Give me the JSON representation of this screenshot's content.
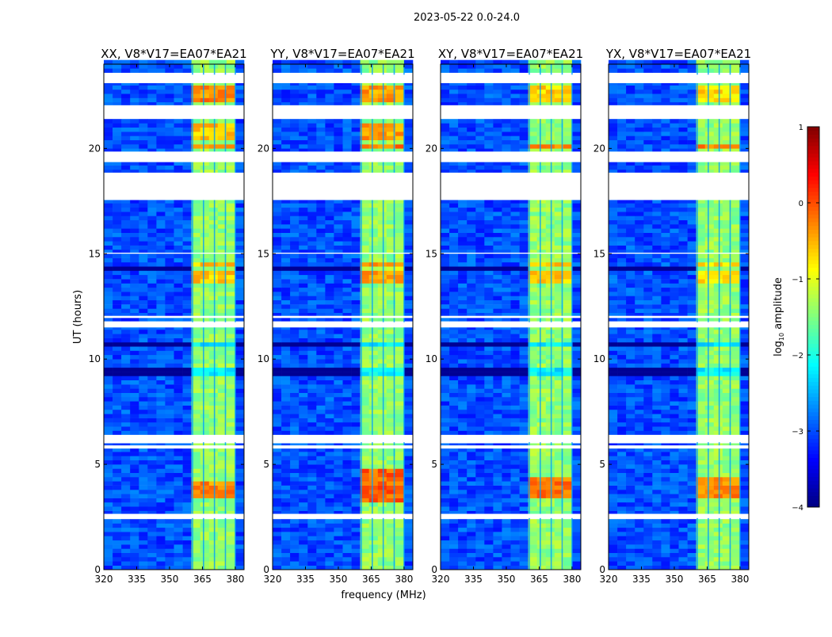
{
  "chart_data": {
    "type": "heatmap",
    "suptitle": "2023-05-22 0.0-24.0",
    "xlabel": "frequency (MHz)",
    "ylabel": "UT (hours)",
    "xlim": [
      320,
      384
    ],
    "ylim": [
      0,
      24
    ],
    "xticks": [
      320,
      335,
      350,
      365,
      380
    ],
    "yticks": [
      0,
      5,
      10,
      15,
      20
    ],
    "colorbar": {
      "label": "log10 amplitude",
      "label_main": "log",
      "label_sub": "10",
      "label_rest": " amplitude",
      "range": [
        -4,
        1
      ],
      "ticks": [
        1,
        0,
        -1,
        -2,
        -3,
        -4
      ],
      "tick_labels": [
        "1",
        "0",
        "−1",
        "−2",
        "−3",
        "−4"
      ],
      "colormap": "jet"
    },
    "band_mhz": [
      360.5,
      380
    ],
    "band_dividers_mhz": [
      365.5,
      370.5,
      375.5
    ],
    "background_level": -3.0,
    "band_level": -1.4,
    "flagged_hours": [
      [
        2.45,
        2.65
      ],
      [
        5.75,
        5.9
      ],
      [
        6.05,
        6.4
      ],
      [
        11.5,
        11.75
      ],
      [
        11.95,
        12.05
      ],
      [
        15.0,
        15.05
      ],
      [
        17.55,
        18.85
      ],
      [
        19.35,
        19.85
      ],
      [
        21.4,
        22.05
      ],
      [
        23.1,
        23.5
      ]
    ],
    "dark_rows_hours": [
      [
        8.0,
        8.05
      ],
      [
        9.2,
        9.5
      ],
      [
        9.9,
        9.95
      ],
      [
        10.6,
        10.7
      ],
      [
        11.0,
        11.05
      ],
      [
        12.9,
        13.0
      ],
      [
        14.2,
        14.3
      ],
      [
        16.2,
        16.25
      ],
      [
        0.85,
        0.9
      ]
    ],
    "panels": [
      {
        "title": "XX, V8*V17=EA07*EA21",
        "bright": [
          [
            3.4,
            4.3,
            -0.3
          ],
          [
            19.9,
            20.2,
            -0.2
          ],
          [
            22.1,
            23.0,
            -0.3
          ],
          [
            20.4,
            21.2,
            -0.6
          ],
          [
            13.6,
            14.6,
            -0.6
          ]
        ]
      },
      {
        "title": "YY, V8*V17=EA07*EA21",
        "bright": [
          [
            3.3,
            4.8,
            -0.1
          ],
          [
            19.9,
            20.2,
            -0.2
          ],
          [
            22.1,
            23.0,
            -0.4
          ],
          [
            20.4,
            21.2,
            -0.4
          ],
          [
            13.6,
            14.6,
            -0.4
          ]
        ]
      },
      {
        "title": "XY, V8*V17=EA07*EA21",
        "bright": [
          [
            3.5,
            4.5,
            -0.2
          ],
          [
            19.9,
            20.2,
            -0.2
          ],
          [
            22.1,
            23.0,
            -0.7
          ],
          [
            13.6,
            14.6,
            -0.6
          ]
        ]
      },
      {
        "title": "YX, V8*V17=EA07*EA21",
        "bright": [
          [
            3.5,
            4.4,
            -0.3
          ],
          [
            19.9,
            20.2,
            -0.3
          ],
          [
            22.1,
            23.0,
            -0.7
          ],
          [
            13.6,
            14.6,
            -0.7
          ]
        ]
      }
    ]
  }
}
